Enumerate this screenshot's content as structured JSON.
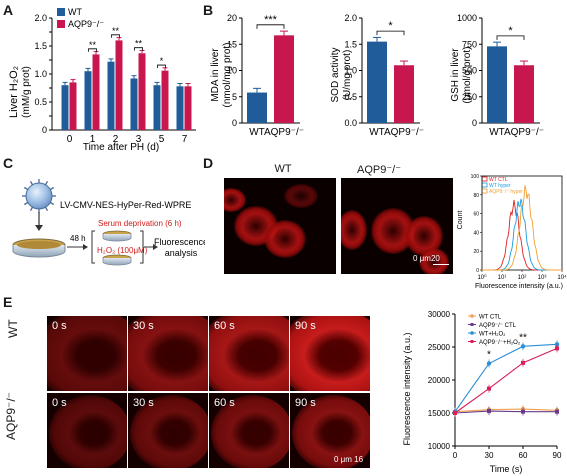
{
  "panels": {
    "A": "A",
    "B": "B",
    "C": "C",
    "D": "D",
    "E": "E"
  },
  "colors": {
    "wt": "#1f5c99",
    "aqp9": "#c8174f",
    "wt_ctl": "#f0a050",
    "aqp9_ctl": "#6a3c8c",
    "wt_h2o2": "#2a8fd6",
    "aqp9_h2o2": "#d81f5a"
  },
  "panel_a": {
    "ylabel_line1": "Liver H₂O₂",
    "ylabel_line2": "(mM/g prot)",
    "xlabel": "Time after PH (d)",
    "legend": [
      "WT",
      "AQP9⁻/⁻"
    ],
    "sig": [
      "**",
      "**",
      "**",
      "*"
    ]
  },
  "panel_b": {
    "mda": {
      "ylabel_line1": "MDA in liver",
      "ylabel_line2": "(nmol/mg prot)",
      "sig": "***"
    },
    "sod": {
      "ylabel_line1": "SOD activity",
      "ylabel_line2": "(U/mg prot)",
      "sig": "*"
    },
    "gsh": {
      "ylabel_line1": "GSH in liver",
      "ylabel_line2": "(μmol/g prot)",
      "sig": "*"
    },
    "xticks": [
      "WT",
      "AQP9⁻/⁻"
    ]
  },
  "panel_c": {
    "construct": "LV-CMV-NES-HyPer-Red-WPRE",
    "time": "48 h",
    "serum": "Serum deprivation (6 h)",
    "h2o2": "H₂O₂ (100μM)",
    "analysis_line1": "Fluorescence",
    "analysis_line2": "analysis"
  },
  "panel_d": {
    "titles": [
      "WT",
      "AQP9⁻/⁻"
    ],
    "scale": "0 μm20",
    "hist": {
      "ylabel": "Count",
      "xlabel": "Fluorescence intensity (a.u.)",
      "legend": [
        "WT CTL",
        "WT hyper",
        "AQP9⁻/⁻ hyper"
      ],
      "yticks": [
        "0",
        "20",
        "40",
        "60",
        "80",
        "100"
      ],
      "xticks": [
        "10⁰",
        "10¹",
        "10²",
        "10³",
        "10⁴"
      ]
    }
  },
  "panel_e": {
    "rows": [
      "WT",
      "AQP9⁻/⁻"
    ],
    "times": [
      "0 s",
      "30 s",
      "60 s",
      "90 s"
    ],
    "scale": "0 μm 16",
    "plot": {
      "ylabel": "Fluorescence intensity (a.u.)",
      "xlabel": "Time (s)",
      "sig": [
        "*",
        "**"
      ],
      "legend": [
        "WT CTL",
        "AQP9⁻/⁻ CTL",
        "WT+H₂O₂",
        "AQP9⁻/⁻+H₂O₂"
      ]
    }
  },
  "chart_data": [
    {
      "type": "bar",
      "id": "A",
      "categories": [
        "0",
        "1",
        "2",
        "3",
        "5",
        "7"
      ],
      "series": [
        {
          "name": "WT",
          "values": [
            0.8,
            1.05,
            1.22,
            0.92,
            0.8,
            0.78
          ]
        },
        {
          "name": "AQP9⁻/⁻",
          "values": [
            0.85,
            1.35,
            1.6,
            1.37,
            1.06,
            0.78
          ]
        }
      ],
      "xlabel": "Time after PH (d)",
      "ylabel": "Liver H₂O₂ (mM/g prot)",
      "ylim": [
        0,
        2.0
      ],
      "yticks": [
        0,
        0.25,
        0.5,
        0.75,
        1.0,
        1.25,
        1.5,
        1.75,
        2.0
      ],
      "yticklabels": [
        "0",
        "",
        "0.5",
        "",
        "1.0",
        "",
        "1.5",
        "",
        "2.0"
      ]
    },
    {
      "type": "bar",
      "id": "B-MDA",
      "categories": [
        "WT",
        "AQP9⁻/⁻"
      ],
      "values": [
        5.8,
        16.7
      ],
      "ylabel": "MDA in liver (nmol/mg prot)",
      "ylim": [
        0,
        20
      ],
      "yticks": [
        0,
        5,
        10,
        15,
        20
      ]
    },
    {
      "type": "bar",
      "id": "B-SOD",
      "categories": [
        "WT",
        "AQP9⁻/⁻"
      ],
      "values": [
        1.55,
        1.1
      ],
      "ylabel": "SOD activity (U/mg prot)",
      "ylim": [
        0,
        2.0
      ],
      "yticks": [
        0,
        0.5,
        1.0,
        1.5,
        2.0
      ]
    },
    {
      "type": "bar",
      "id": "B-GSH",
      "categories": [
        "WT",
        "AQP9⁻/⁻"
      ],
      "values": [
        730,
        550
      ],
      "ylabel": "GSH in liver (μmol/g prot)",
      "ylim": [
        0,
        1000
      ],
      "yticks": [
        0,
        250,
        500,
        750,
        1000
      ]
    },
    {
      "type": "line",
      "id": "E",
      "x": [
        0,
        30,
        60,
        90
      ],
      "series": [
        {
          "name": "WT CTL",
          "values": [
            15200,
            15500,
            15600,
            15400
          ]
        },
        {
          "name": "AQP9⁻/⁻ CTL",
          "values": [
            15000,
            15300,
            15200,
            15200
          ]
        },
        {
          "name": "WT+H₂O₂",
          "values": [
            15200,
            22500,
            25100,
            25400
          ]
        },
        {
          "name": "AQP9⁻/⁻+H₂O₂",
          "values": [
            15000,
            18700,
            22600,
            24800
          ]
        }
      ],
      "xlabel": "Time (s)",
      "ylabel": "Fluorescence intensity (a.u.)",
      "xlim": [
        0,
        90
      ],
      "ylim": [
        10000,
        30000
      ],
      "yticks": [
        10000,
        15000,
        20000,
        25000,
        30000
      ],
      "xticks": [
        0,
        30,
        60,
        90
      ]
    }
  ]
}
